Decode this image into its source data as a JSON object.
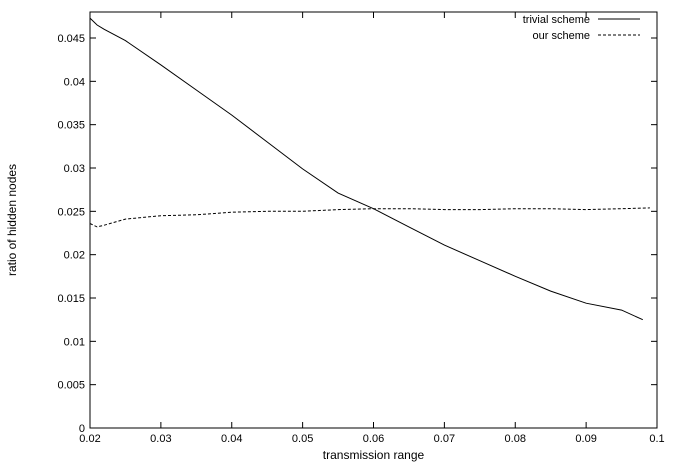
{
  "chart_data": {
    "type": "line",
    "title": "",
    "xlabel": "transmission range",
    "ylabel": "ratio of hidden nodes",
    "xlim": [
      0.02,
      0.1
    ],
    "ylim": [
      0,
      0.048
    ],
    "grid": false,
    "legend_position": "top-right",
    "x_ticks": [
      0.02,
      0.03,
      0.04,
      0.05,
      0.06,
      0.07,
      0.08,
      0.09,
      0.1
    ],
    "x_tick_labels": [
      "0.02",
      "0.03",
      "0.04",
      "0.05",
      "0.06",
      "0.07",
      "0.08",
      "0.09",
      "0.1"
    ],
    "y_ticks": [
      0,
      0.005,
      0.01,
      0.015,
      0.02,
      0.025,
      0.03,
      0.035,
      0.04,
      0.045
    ],
    "y_tick_labels": [
      "0",
      "0.005",
      "0.01",
      "0.015",
      "0.02",
      "0.025",
      "0.03",
      "0.035",
      "0.04",
      "0.045"
    ],
    "series": [
      {
        "name": "trivial scheme",
        "style": "solid",
        "color": "#000000",
        "x": [
          0.02,
          0.021,
          0.022,
          0.025,
          0.03,
          0.035,
          0.04,
          0.045,
          0.05,
          0.055,
          0.06,
          0.065,
          0.07,
          0.075,
          0.08,
          0.085,
          0.09,
          0.095,
          0.098
        ],
        "y": [
          0.0473,
          0.0465,
          0.046,
          0.0447,
          0.0419,
          0.039,
          0.0361,
          0.033,
          0.0299,
          0.0271,
          0.0253,
          0.0232,
          0.0211,
          0.0193,
          0.0175,
          0.0158,
          0.0144,
          0.0136,
          0.0125
        ]
      },
      {
        "name": "our scheme",
        "style": "dashed",
        "color": "#000000",
        "x": [
          0.02,
          0.021,
          0.022,
          0.025,
          0.03,
          0.035,
          0.04,
          0.045,
          0.05,
          0.055,
          0.06,
          0.065,
          0.07,
          0.075,
          0.08,
          0.085,
          0.09,
          0.095,
          0.099
        ],
        "y": [
          0.0236,
          0.0232,
          0.0234,
          0.0241,
          0.0245,
          0.0246,
          0.0249,
          0.025,
          0.025,
          0.0252,
          0.0253,
          0.0253,
          0.0252,
          0.0252,
          0.0253,
          0.0253,
          0.0252,
          0.0253,
          0.0254
        ]
      }
    ]
  }
}
